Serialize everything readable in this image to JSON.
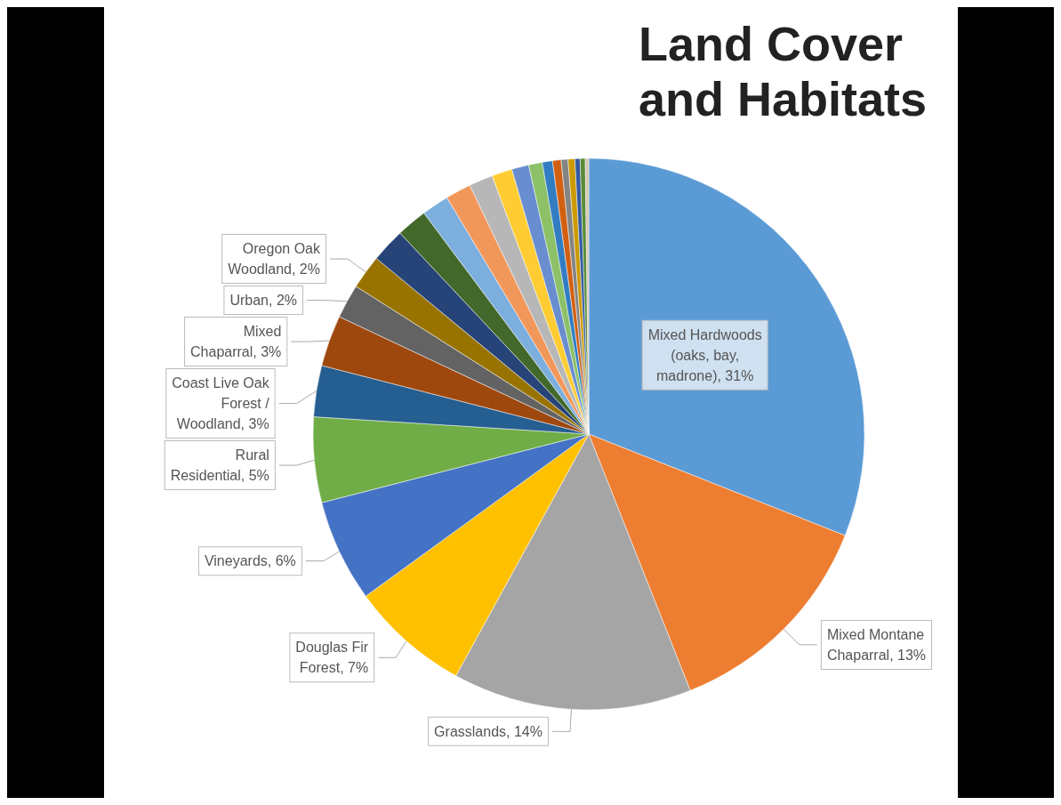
{
  "chart_data": {
    "type": "pie",
    "title": "Land Cover\nand Habitats",
    "categories": [
      "Mixed Hardwoods (oaks, bay, madrone)",
      "Mixed Montane Chaparral",
      "Grasslands",
      "Douglas Fir Forest",
      "Vineyards",
      "Rural Residential",
      "Coast Live Oak Forest / Woodland",
      "Mixed Chaparral",
      "Urban",
      "Oregon Oak Woodland",
      null,
      null,
      null,
      null,
      null,
      null,
      null,
      null,
      null,
      null,
      null,
      null,
      null,
      null,
      null
    ],
    "values": [
      31,
      13,
      14,
      7,
      6,
      5,
      3,
      3,
      2,
      2,
      2,
      1.8,
      1.6,
      1.5,
      1.4,
      1.2,
      1,
      0.8,
      0.6,
      0.5,
      0.4,
      0.4,
      0.3,
      0.3,
      0.2
    ],
    "value_labels": [
      "31%",
      "13%",
      "14%",
      "7%",
      "6%",
      "5%",
      "3%",
      "3%",
      "2%",
      "2%",
      null,
      null,
      null,
      null,
      null,
      null,
      null,
      null,
      null,
      null,
      null,
      null,
      null,
      null,
      null
    ],
    "colors": [
      "#5b9bd5",
      "#ed7d31",
      "#a5a5a5",
      "#ffc000",
      "#4472c4",
      "#70ad47",
      "#255e91",
      "#9e480e",
      "#636363",
      "#997300",
      "#264478",
      "#43682b",
      "#7cafdd",
      "#f1975a",
      "#b7b7b7",
      "#ffcd33",
      "#698ed0",
      "#8cc168",
      "#327dc2",
      "#d26012",
      "#848484",
      "#cc9a00",
      "#335aa1",
      "#5a8b39",
      "#d5c8b0"
    ],
    "legend": false
  }
}
